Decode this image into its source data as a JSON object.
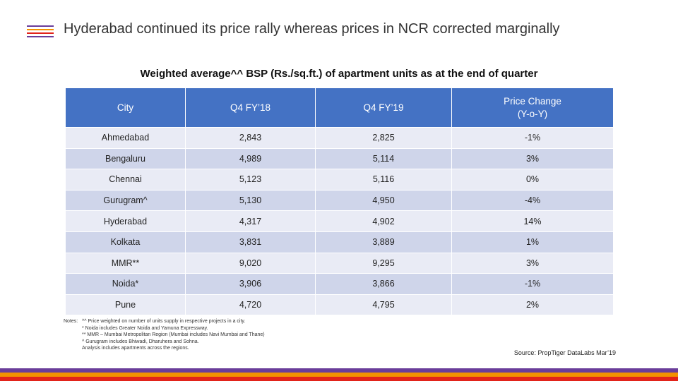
{
  "colors": {
    "header_blue": "#4472c4",
    "row_light": "#e9ebf5",
    "row_dark": "#cfd5ea",
    "stripe_purple": "#6a3d9a",
    "stripe_orange": "#f39200",
    "stripe_red": "#e2231a"
  },
  "header": {
    "title": "Hyderabad continued its price rally whereas prices in NCR corrected marginally"
  },
  "table": {
    "caption": "Weighted average^^ BSP (Rs./sq.ft.) of apartment units as at the end of quarter",
    "columns": [
      "City",
      "Q4 FY’18",
      "Q4 FY’19",
      "Price Change\n(Y-o-Y)"
    ],
    "rows": [
      [
        "Ahmedabad",
        "2,843",
        "2,825",
        "-1%"
      ],
      [
        "Bengaluru",
        "4,989",
        "5,114",
        "3%"
      ],
      [
        "Chennai",
        "5,123",
        "5,116",
        "0%"
      ],
      [
        "Gurugram^",
        "5,130",
        "4,950",
        "-4%"
      ],
      [
        "Hyderabad",
        "4,317",
        "4,902",
        "14%"
      ],
      [
        "Kolkata",
        "3,831",
        "3,889",
        "1%"
      ],
      [
        "MMR**",
        "9,020",
        "9,295",
        "3%"
      ],
      [
        "Noida*",
        "3,906",
        "3,866",
        "-1%"
      ],
      [
        "Pune",
        "4,720",
        "4,795",
        "2%"
      ]
    ]
  },
  "notes": {
    "label": "Notes:",
    "lines": [
      "^^ Price weighted on number of units supply in respective projects in a city.",
      "* Noida includes Greater Noida and Yamuna Expressway.",
      "** MMR – Mumbai Metropolitan Region (Mumbai includes Navi Mumbai and Thane)",
      "^ Gurugram includes Bhiwadi, Dharuhera and Sohna.",
      "Analysis includes apartments across the regions."
    ]
  },
  "source": "Source: PropTiger DataLabs Mar’19"
}
